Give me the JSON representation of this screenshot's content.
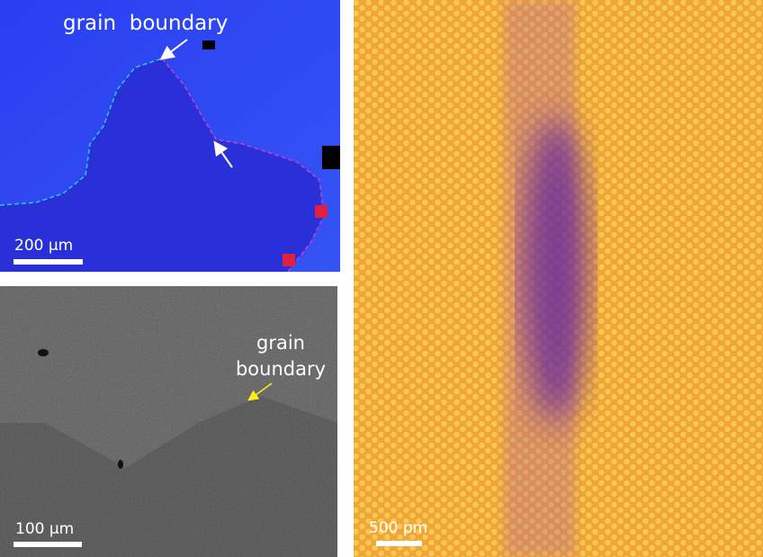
{
  "panels": [
    {
      "annotation": "grain  boundary",
      "scale_bar": "200 µm"
    },
    {
      "annotation": [
        "grain",
        "boundary"
      ],
      "scale_bar": "100 µm"
    },
    {
      "scale_bar": "500 pm"
    }
  ]
}
